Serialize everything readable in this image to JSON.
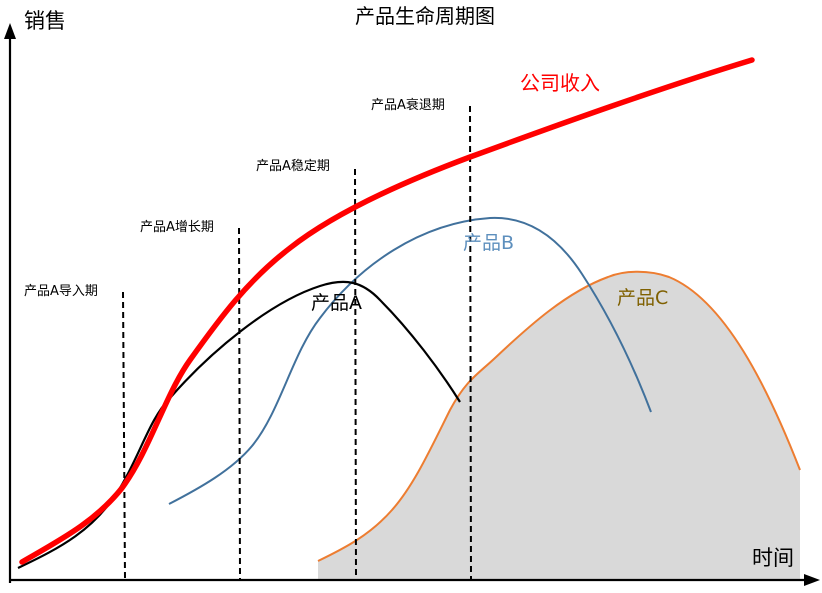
{
  "diagram": {
    "title": "产品生命周期图",
    "y_axis_label": "销售",
    "x_axis_label": "时间",
    "revenue_label": "公司收入",
    "phases": [
      "产品A导入期",
      "产品A增长期",
      "产品A稳定期",
      "产品A衰退期"
    ],
    "products": {
      "a": "产品A",
      "b": "产品B",
      "c": "产品C"
    },
    "colors": {
      "revenue": "#ff0000",
      "product_a": "#000000",
      "product_b": "#41719c",
      "product_b_label": "#5d8fbd",
      "product_c": "#ed7d31",
      "product_c_label": "#7f6000",
      "product_c_fill": "#d9d9d9",
      "axes": "#000000"
    }
  }
}
